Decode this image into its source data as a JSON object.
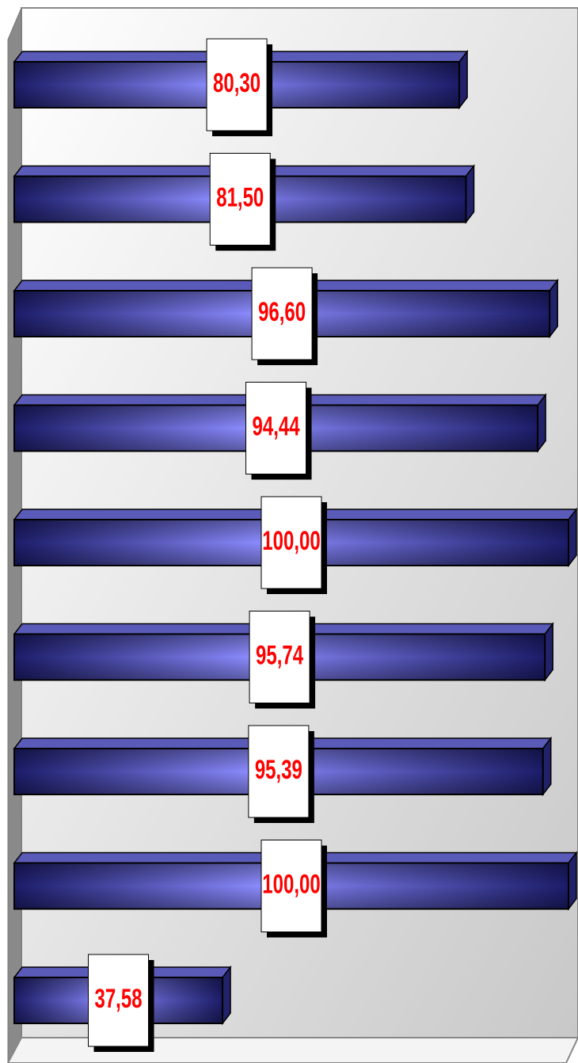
{
  "chart_data": {
    "type": "hbar",
    "categories": [
      null,
      null,
      null,
      null,
      null,
      null,
      null,
      null,
      null
    ],
    "values": [
      80.3,
      81.5,
      96.6,
      94.44,
      100,
      95.74,
      95.39,
      100,
      37.58
    ],
    "value_labels": [
      "80,30",
      "81,50",
      "96,60",
      "94,44",
      "100,00",
      "95,74",
      "95,39",
      "100,00",
      "37,58"
    ],
    "xlim": [
      0,
      100
    ],
    "color": "#2b2b8f",
    "label_color": "#ff0000"
  }
}
